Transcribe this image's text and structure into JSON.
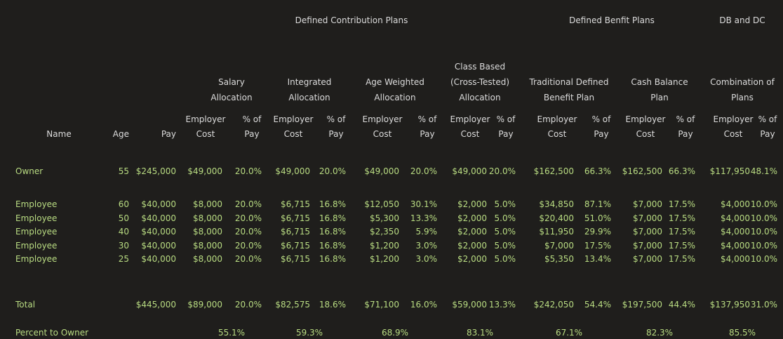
{
  "section_headers": [
    "Defined Contribution Plans",
    "Defined Benfit Plans",
    "DB and DC"
  ],
  "plan_headers": [
    [
      "Salary",
      "Allocation"
    ],
    [
      "Integrated",
      "Allocation"
    ],
    [
      "Age Weighted",
      "Allocation"
    ],
    [
      "Class Based",
      "(Cross-Tested)",
      "Allocation"
    ],
    [
      "Traditional Defined",
      "Benefit Plan"
    ],
    [
      "Cash Balance",
      "Plan"
    ],
    [
      "Combination of",
      "Plans"
    ]
  ],
  "col_headers": {
    "name": "Name",
    "age": "Age",
    "pay": "Pay",
    "cost": [
      "Employer",
      "Cost"
    ],
    "pct": [
      "% of",
      "Pay"
    ]
  },
  "rows": [
    {
      "name": "Owner",
      "age": "55",
      "pay": "$245,000",
      "vals": [
        "$49,000",
        "20.0%",
        "$49,000",
        "20.0%",
        "$49,000",
        "20.0%",
        "$49,000",
        "20.0%",
        "$162,500",
        "66.3%",
        "$162,500",
        "66.3%",
        "$117,950",
        "48.1%"
      ]
    },
    {
      "name": "Employee",
      "age": "60",
      "pay": "$40,000",
      "vals": [
        "$8,000",
        "20.0%",
        "$6,715",
        "16.8%",
        "$12,050",
        "30.1%",
        "$2,000",
        "5.0%",
        "$34,850",
        "87.1%",
        "$7,000",
        "17.5%",
        "$4,000",
        "10.0%"
      ]
    },
    {
      "name": "Employee",
      "age": "50",
      "pay": "$40,000",
      "vals": [
        "$8,000",
        "20.0%",
        "$6,715",
        "16.8%",
        "$5,300",
        "13.3%",
        "$2,000",
        "5.0%",
        "$20,400",
        "51.0%",
        "$7,000",
        "17.5%",
        "$4,000",
        "10.0%"
      ]
    },
    {
      "name": "Employee",
      "age": "40",
      "pay": "$40,000",
      "vals": [
        "$8,000",
        "20.0%",
        "$6,715",
        "16.8%",
        "$2,350",
        "5.9%",
        "$2,000",
        "5.0%",
        "$11,950",
        "29.9%",
        "$7,000",
        "17.5%",
        "$4,000",
        "10.0%"
      ]
    },
    {
      "name": "Employee",
      "age": "30",
      "pay": "$40,000",
      "vals": [
        "$8,000",
        "20.0%",
        "$6,715",
        "16.8%",
        "$1,200",
        "3.0%",
        "$2,000",
        "5.0%",
        "$7,000",
        "17.5%",
        "$7,000",
        "17.5%",
        "$4,000",
        "10.0%"
      ]
    },
    {
      "name": "Employee",
      "age": "25",
      "pay": "$40,000",
      "vals": [
        "$8,000",
        "20.0%",
        "$6,715",
        "16.8%",
        "$1,200",
        "3.0%",
        "$2,000",
        "5.0%",
        "$5,350",
        "13.4%",
        "$7,000",
        "17.5%",
        "$4,000",
        "10.0%"
      ]
    }
  ],
  "total": {
    "name": "Total",
    "pay": "$445,000",
    "vals": [
      "$89,000",
      "20.0%",
      "$82,575",
      "18.6%",
      "$71,100",
      "16.0%",
      "$59,000",
      "13.3%",
      "$242,050",
      "54.4%",
      "$197,500",
      "44.4%",
      "$137,950",
      "31.0%"
    ]
  },
  "percent_owner": {
    "label": "Percent to Owner",
    "vals": [
      "55.1%",
      "59.3%",
      "68.9%",
      "83.1%",
      "67.1%",
      "82.3%",
      "85.5%"
    ]
  },
  "colors": {
    "background": "#1f1e1c",
    "header_text": "#dcdcdc",
    "data_text": "#b9dc82"
  }
}
